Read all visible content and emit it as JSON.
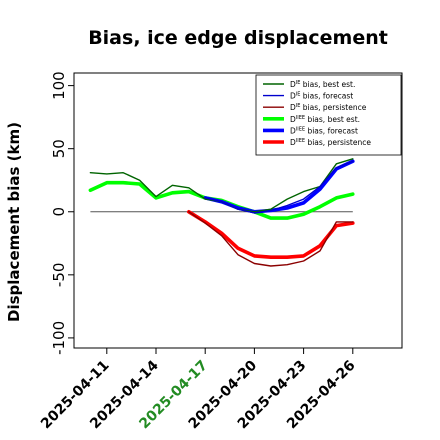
{
  "chart_data": {
    "type": "line",
    "title": "Bias, ice edge displacement",
    "ylabel": "Displacement bias (km)",
    "xlabel": "",
    "ylim": [
      -108,
      110
    ],
    "xlim": [
      -2,
      18
    ],
    "yticks": [
      -100,
      -50,
      0,
      50,
      100
    ],
    "xticks": [
      {
        "label": "2025-04-11",
        "pos": 0,
        "color": "#000000"
      },
      {
        "label": "2025-04-14",
        "pos": 3,
        "color": "#000000"
      },
      {
        "label": "2025-04-17",
        "pos": 6,
        "color": "#228b22"
      },
      {
        "label": "2025-04-20",
        "pos": 9,
        "color": "#000000"
      },
      {
        "label": "2025-04-23",
        "pos": 12,
        "color": "#000000"
      },
      {
        "label": "2025-04-26",
        "pos": 15,
        "color": "#000000"
      }
    ],
    "zero_line": true,
    "grid": false,
    "legend_position": "top-right",
    "series": [
      {
        "name": "D^IE bias, best est.",
        "legend_main": "D",
        "legend_sup": "IE",
        "legend_rest": " bias, best est.",
        "color": "#006400",
        "width": 1.4,
        "x": [
          -1,
          0,
          1,
          2,
          3,
          4,
          5,
          6,
          7,
          8,
          9,
          10,
          11,
          12,
          13,
          14,
          15
        ],
        "y": [
          31,
          30,
          31,
          25,
          12,
          21,
          19,
          10,
          8,
          2,
          0,
          2,
          10,
          16,
          20,
          38,
          42
        ]
      },
      {
        "name": "D^IE bias, forecast",
        "legend_main": "D",
        "legend_sup": "IE",
        "legend_rest": " bias, forecast",
        "color": "#0000cd",
        "width": 1.4,
        "x": [
          6,
          7,
          8,
          9,
          10,
          11,
          12,
          13,
          14,
          15
        ],
        "y": [
          11,
          8,
          2,
          -1,
          1,
          5,
          10,
          20,
          35,
          40
        ]
      },
      {
        "name": "D^IE bias, persistence",
        "legend_main": "D",
        "legend_sup": "IE",
        "legend_rest": " bias, persistence",
        "color": "#8b0000",
        "width": 1.4,
        "x": [
          5,
          6,
          7,
          8,
          9,
          10,
          11,
          12,
          13,
          14,
          15
        ],
        "y": [
          0,
          -9,
          -19,
          -34,
          -41,
          -43,
          -42,
          -39,
          -31,
          -8,
          -8
        ]
      },
      {
        "name": "D^IIEE bias, best est.",
        "legend_main": "D",
        "legend_sup": "IIEE",
        "legend_rest": " bias, best est.",
        "color": "#00ff00",
        "width": 3.6,
        "x": [
          -1,
          0,
          1,
          2,
          3,
          4,
          5,
          6,
          7,
          8,
          9,
          10,
          11,
          12,
          13,
          14,
          15
        ],
        "y": [
          17,
          23,
          23,
          22,
          11,
          15,
          16,
          11,
          9,
          4,
          0,
          -5,
          -5,
          -2,
          4,
          11,
          14
        ]
      },
      {
        "name": "D^IIEE bias, forecast",
        "legend_main": "D",
        "legend_sup": "IIEE",
        "legend_rest": " bias, forecast",
        "color": "#0000ff",
        "width": 3.6,
        "x": [
          6,
          7,
          8,
          9,
          10,
          11,
          12,
          13,
          14,
          15
        ],
        "y": [
          11,
          8,
          3,
          0,
          1,
          3,
          7,
          18,
          34,
          40
        ]
      },
      {
        "name": "D^IIEE bias, persistence",
        "legend_main": "D",
        "legend_sup": "IIEE",
        "legend_rest": " bias, persistence",
        "color": "#ff0000",
        "width": 3.6,
        "x": [
          5,
          6,
          7,
          8,
          9,
          10,
          11,
          12,
          13,
          14,
          15
        ],
        "y": [
          0,
          -8,
          -17,
          -29,
          -35,
          -36,
          -36,
          -35,
          -27,
          -11,
          -9
        ]
      }
    ]
  }
}
